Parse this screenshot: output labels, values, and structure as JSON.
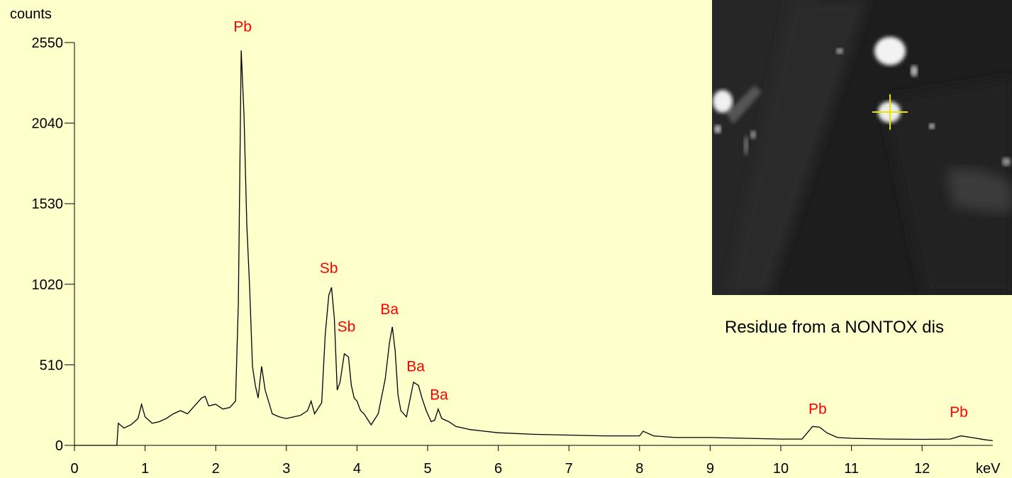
{
  "chart_data": {
    "type": "line",
    "ylabel": "counts",
    "xlabel": "keV",
    "xlim": [
      0,
      13
    ],
    "ylim": [
      0,
      2550
    ],
    "x_ticks": [
      0,
      1,
      2,
      3,
      4,
      5,
      6,
      7,
      8,
      9,
      10,
      11,
      12
    ],
    "x_tick_labels": [
      "0",
      "1",
      "2",
      "3",
      "4",
      "5",
      "6",
      "7",
      "8",
      "9",
      "10",
      "11",
      "12"
    ],
    "y_ticks": [
      0,
      510,
      1020,
      1530,
      2040,
      2550
    ],
    "y_tick_labels": [
      "0",
      "510",
      "1020",
      "1530",
      "2040",
      "2550"
    ],
    "grid": false,
    "line_color": "#000000",
    "annotation_color": "#ff0000",
    "spectrum": {
      "x": [
        0.0,
        0.6,
        0.62,
        0.7,
        0.8,
        0.9,
        0.95,
        1.0,
        1.1,
        1.2,
        1.3,
        1.4,
        1.5,
        1.6,
        1.7,
        1.8,
        1.85,
        1.9,
        2.0,
        2.1,
        2.2,
        2.28,
        2.32,
        2.36,
        2.4,
        2.44,
        2.48,
        2.52,
        2.56,
        2.6,
        2.65,
        2.7,
        2.8,
        2.9,
        3.0,
        3.1,
        3.2,
        3.3,
        3.35,
        3.4,
        3.5,
        3.55,
        3.6,
        3.64,
        3.68,
        3.72,
        3.76,
        3.82,
        3.88,
        3.92,
        3.96,
        4.0,
        4.05,
        4.1,
        4.2,
        4.3,
        4.4,
        4.46,
        4.5,
        4.54,
        4.58,
        4.62,
        4.7,
        4.8,
        4.87,
        4.92,
        4.98,
        5.05,
        5.1,
        5.15,
        5.2,
        5.3,
        5.4,
        5.5,
        5.6,
        5.8,
        6.0,
        6.5,
        7.0,
        7.5,
        8.0,
        8.05,
        8.2,
        8.5,
        9.0,
        9.5,
        10.0,
        10.3,
        10.45,
        10.55,
        10.65,
        10.8,
        11.0,
        11.5,
        12.0,
        12.4,
        12.55,
        12.7,
        12.9,
        13.0
      ],
      "y": [
        0,
        0,
        140,
        110,
        130,
        170,
        260,
        180,
        140,
        150,
        170,
        200,
        220,
        200,
        250,
        300,
        310,
        250,
        260,
        230,
        240,
        280,
        900,
        2500,
        2100,
        1400,
        1000,
        500,
        380,
        300,
        500,
        350,
        200,
        180,
        170,
        180,
        190,
        220,
        280,
        200,
        270,
        700,
        950,
        1000,
        800,
        350,
        400,
        580,
        560,
        380,
        300,
        280,
        220,
        200,
        130,
        200,
        420,
        650,
        750,
        600,
        320,
        220,
        180,
        400,
        380,
        300,
        220,
        150,
        160,
        230,
        170,
        150,
        120,
        110,
        100,
        90,
        80,
        70,
        65,
        60,
        60,
        90,
        60,
        50,
        50,
        45,
        40,
        40,
        120,
        115,
        80,
        50,
        45,
        40,
        38,
        40,
        60,
        50,
        35,
        30
      ]
    },
    "annotations": [
      {
        "text": "Pb",
        "x": 2.38,
        "y": 2620
      },
      {
        "text": "Sb",
        "x": 3.6,
        "y": 1090
      },
      {
        "text": "Sb",
        "x": 3.85,
        "y": 720
      },
      {
        "text": "Ba",
        "x": 4.46,
        "y": 830
      },
      {
        "text": "Ba",
        "x": 4.83,
        "y": 470
      },
      {
        "text": "Ba",
        "x": 5.16,
        "y": 290
      },
      {
        "text": "Pb",
        "x": 10.52,
        "y": 200
      },
      {
        "text": "Pb",
        "x": 12.52,
        "y": 180
      }
    ]
  },
  "caption": "Residue from a NONTOX dis",
  "sem_icon": "sem-micrograph-icon"
}
